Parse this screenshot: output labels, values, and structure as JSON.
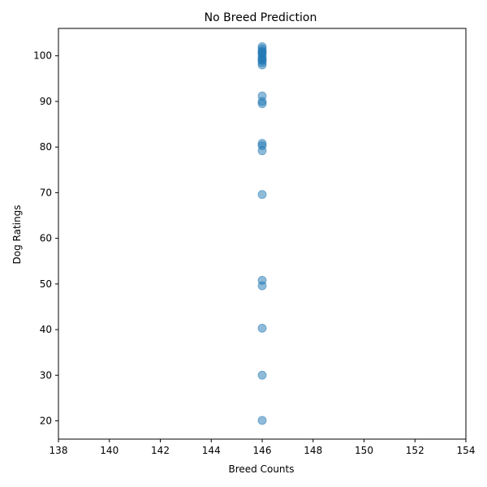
{
  "chart_data": {
    "type": "scatter",
    "title": "No Breed Prediction",
    "xlabel": "Breed Counts",
    "ylabel": "Dog Ratings",
    "xlim": [
      138,
      154
    ],
    "ylim": [
      16,
      106
    ],
    "xticks": [
      "138",
      "140",
      "142",
      "144",
      "146",
      "148",
      "150",
      "152",
      "154"
    ],
    "yticks": [
      "20",
      "30",
      "40",
      "50",
      "60",
      "70",
      "80",
      "90",
      "100"
    ],
    "grid": false,
    "marker_color": "#1f77b4",
    "marker_alpha": 0.5,
    "points": [
      {
        "x": 146,
        "y": 102
      },
      {
        "x": 146,
        "y": 101.5
      },
      {
        "x": 146,
        "y": 101
      },
      {
        "x": 146,
        "y": 100.5
      },
      {
        "x": 146,
        "y": 100
      },
      {
        "x": 146,
        "y": 99.5
      },
      {
        "x": 146,
        "y": 99
      },
      {
        "x": 146,
        "y": 98.5
      },
      {
        "x": 146,
        "y": 98
      },
      {
        "x": 146,
        "y": 100.8
      },
      {
        "x": 146,
        "y": 99.2
      },
      {
        "x": 146,
        "y": 91.2
      },
      {
        "x": 146,
        "y": 90
      },
      {
        "x": 146,
        "y": 89.5
      },
      {
        "x": 146,
        "y": 80.8
      },
      {
        "x": 146,
        "y": 80.3
      },
      {
        "x": 146,
        "y": 79.2
      },
      {
        "x": 146,
        "y": 69.6
      },
      {
        "x": 146,
        "y": 50.8
      },
      {
        "x": 146,
        "y": 49.6
      },
      {
        "x": 146,
        "y": 40.3
      },
      {
        "x": 146,
        "y": 30
      },
      {
        "x": 146,
        "y": 20.1
      }
    ]
  }
}
